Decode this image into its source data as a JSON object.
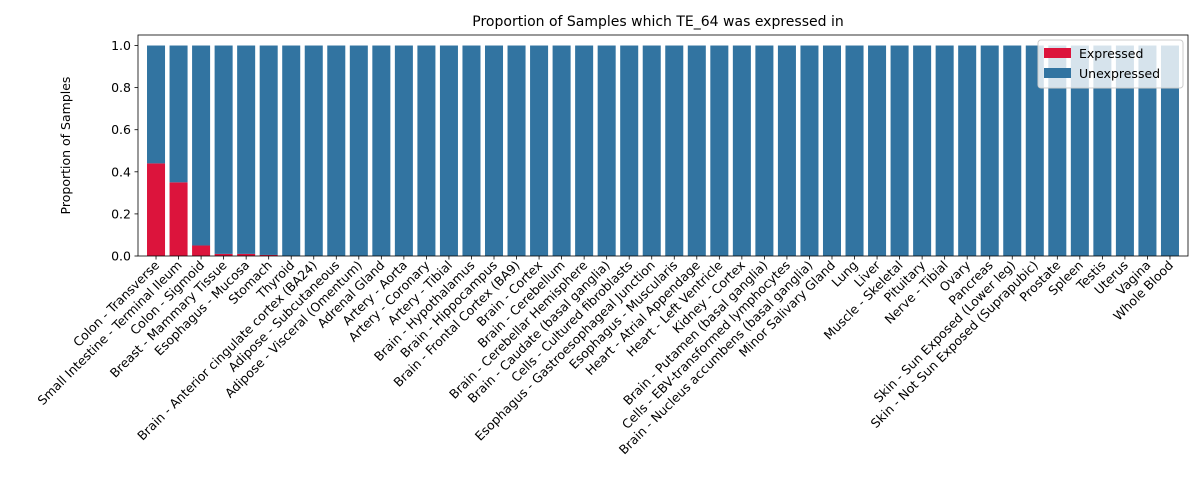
{
  "chart_data": {
    "type": "bar",
    "stacked": true,
    "title": "Proportion of Samples which TE_64 was expressed in",
    "xlabel": "",
    "ylabel": "Proportion of Samples",
    "ylim": [
      0,
      1.05
    ],
    "yticks": [
      "0.0",
      "0.2",
      "0.4",
      "0.6",
      "0.8",
      "1.0"
    ],
    "grid": false,
    "legend_position": "top-right",
    "categories": [
      "Colon - Transverse",
      "Small Intestine - Terminal Ileum",
      "Colon - Sigmoid",
      "Breast - Mammary Tissue",
      "Esophagus - Mucosa",
      "Stomach",
      "Thyroid",
      "Brain - Anterior cingulate cortex (BA24)",
      "Adipose - Subcutaneous",
      "Adipose - Visceral (Omentum)",
      "Adrenal Gland",
      "Artery - Aorta",
      "Artery - Coronary",
      "Artery - Tibial",
      "Brain - Hypothalamus",
      "Brain - Hippocampus",
      "Brain - Frontal Cortex (BA9)",
      "Brain - Cortex",
      "Brain - Cerebellum",
      "Brain - Cerebellar Hemisphere",
      "Brain - Caudate (basal ganglia)",
      "Cells - Cultured fibroblasts",
      "Esophagus - Gastroesophageal Junction",
      "Esophagus - Muscularis",
      "Heart - Atrial Appendage",
      "Heart - Left Ventricle",
      "Kidney - Cortex",
      "Brain - Putamen (basal ganglia)",
      "Cells - EBV-transformed lymphocytes",
      "Brain - Nucleus accumbens (basal ganglia)",
      "Minor Salivary Gland",
      "Lung",
      "Liver",
      "Muscle - Skeletal",
      "Pituitary",
      "Nerve - Tibial",
      "Ovary",
      "Pancreas",
      "Skin - Sun Exposed (Lower leg)",
      "Skin - Not Sun Exposed (Suprapubic)",
      "Prostate",
      "Spleen",
      "Testis",
      "Uterus",
      "Vagina",
      "Whole Blood"
    ],
    "series": [
      {
        "name": "Expressed",
        "color": "#dc143c",
        "values": [
          0.44,
          0.35,
          0.05,
          0.01,
          0.01,
          0.005,
          0,
          0,
          0,
          0,
          0,
          0,
          0,
          0,
          0,
          0,
          0,
          0,
          0,
          0,
          0,
          0,
          0,
          0,
          0,
          0,
          0,
          0,
          0,
          0,
          0,
          0,
          0,
          0,
          0,
          0,
          0,
          0,
          0,
          0,
          0,
          0,
          0,
          0,
          0,
          0
        ]
      },
      {
        "name": "Unexpressed",
        "color": "#3274a1",
        "values": [
          0.56,
          0.65,
          0.95,
          0.99,
          0.99,
          0.995,
          1,
          1,
          1,
          1,
          1,
          1,
          1,
          1,
          1,
          1,
          1,
          1,
          1,
          1,
          1,
          1,
          1,
          1,
          1,
          1,
          1,
          1,
          1,
          1,
          1,
          1,
          1,
          1,
          1,
          1,
          1,
          1,
          1,
          1,
          1,
          1,
          1,
          1,
          1,
          1
        ]
      }
    ]
  }
}
